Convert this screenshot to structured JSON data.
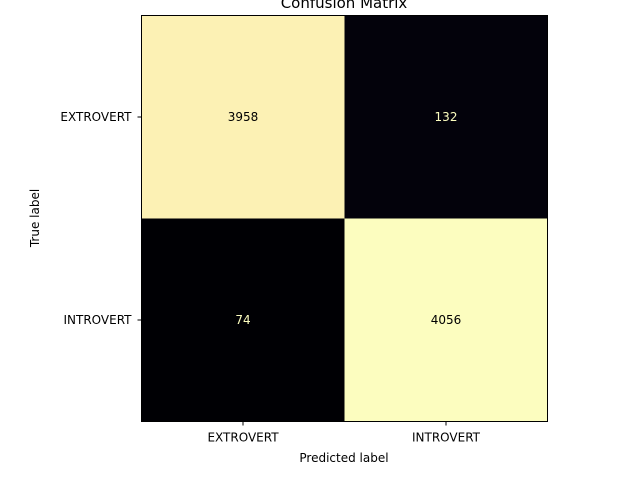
{
  "chart_data": {
    "type": "heatmap",
    "title": "Confusion Matrix",
    "xlabel": "Predicted label",
    "ylabel": "True label",
    "x_categories": [
      "EXTROVERT",
      "INTROVERT"
    ],
    "y_categories": [
      "EXTROVERT",
      "INTROVERT"
    ],
    "values": [
      [
        3958,
        132
      ],
      [
        74,
        4056
      ]
    ],
    "colormap": "magma",
    "colorbar": false,
    "colors": {
      "high": "#fcfdbf",
      "low": "#000004",
      "text_on_light": "#000000",
      "text_on_dark": "#fcfdbf"
    }
  }
}
